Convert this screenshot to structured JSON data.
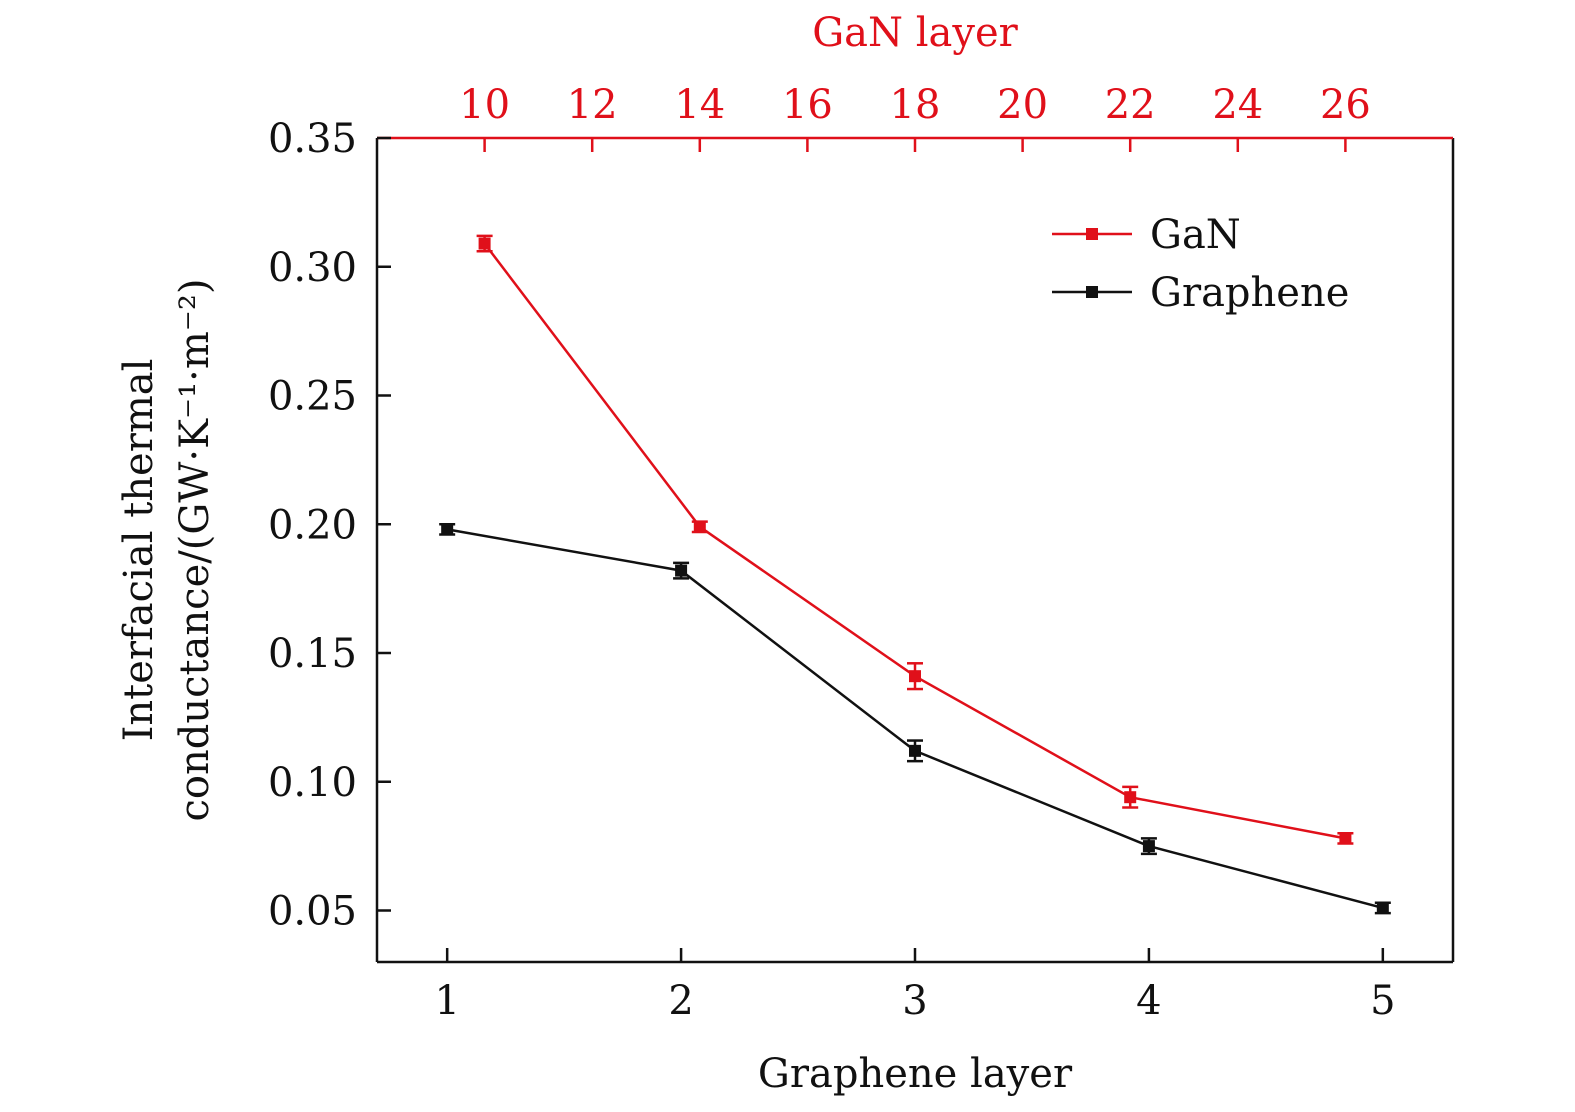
{
  "chart_data": {
    "type": "line",
    "xlabel": "Graphene layer",
    "x2label": "GaN layer",
    "ylabel_line1": "Interfacial thermal",
    "ylabel_line2": "conductance/(GW·K⁻¹·m⁻²)",
    "xlim": [
      0.7,
      5.3
    ],
    "ylim": [
      0.03,
      0.35
    ],
    "x2lim": [
      8,
      28
    ],
    "xticks": [
      1,
      2,
      3,
      4,
      5
    ],
    "xtick_labels": [
      "1",
      "2",
      "3",
      "4",
      "5"
    ],
    "x2ticks": [
      10,
      12,
      14,
      16,
      18,
      20,
      22,
      24,
      26
    ],
    "x2tick_labels": [
      "10",
      "12",
      "14",
      "16",
      "18",
      "20",
      "22",
      "24",
      "26"
    ],
    "yticks": [
      0.05,
      0.1,
      0.15,
      0.2,
      0.25,
      0.3,
      0.35
    ],
    "ytick_labels": [
      "0.05",
      "0.10",
      "0.15",
      "0.20",
      "0.25",
      "0.30",
      "0.35"
    ],
    "legend_position": "top-right",
    "grid": false,
    "series": [
      {
        "name": "GaN",
        "axis": "top",
        "color": "#e0101a",
        "x": [
          10,
          14,
          18,
          22,
          26
        ],
        "y": [
          0.309,
          0.199,
          0.141,
          0.094,
          0.078
        ],
        "err": [
          0.003,
          0.002,
          0.005,
          0.004,
          0.002
        ]
      },
      {
        "name": "Graphene",
        "axis": "bottom",
        "color": "#111111",
        "x": [
          1,
          2,
          3,
          4,
          5
        ],
        "y": [
          0.198,
          0.182,
          0.112,
          0.075,
          0.051
        ],
        "err": [
          0.002,
          0.003,
          0.004,
          0.003,
          0.002
        ]
      }
    ]
  }
}
